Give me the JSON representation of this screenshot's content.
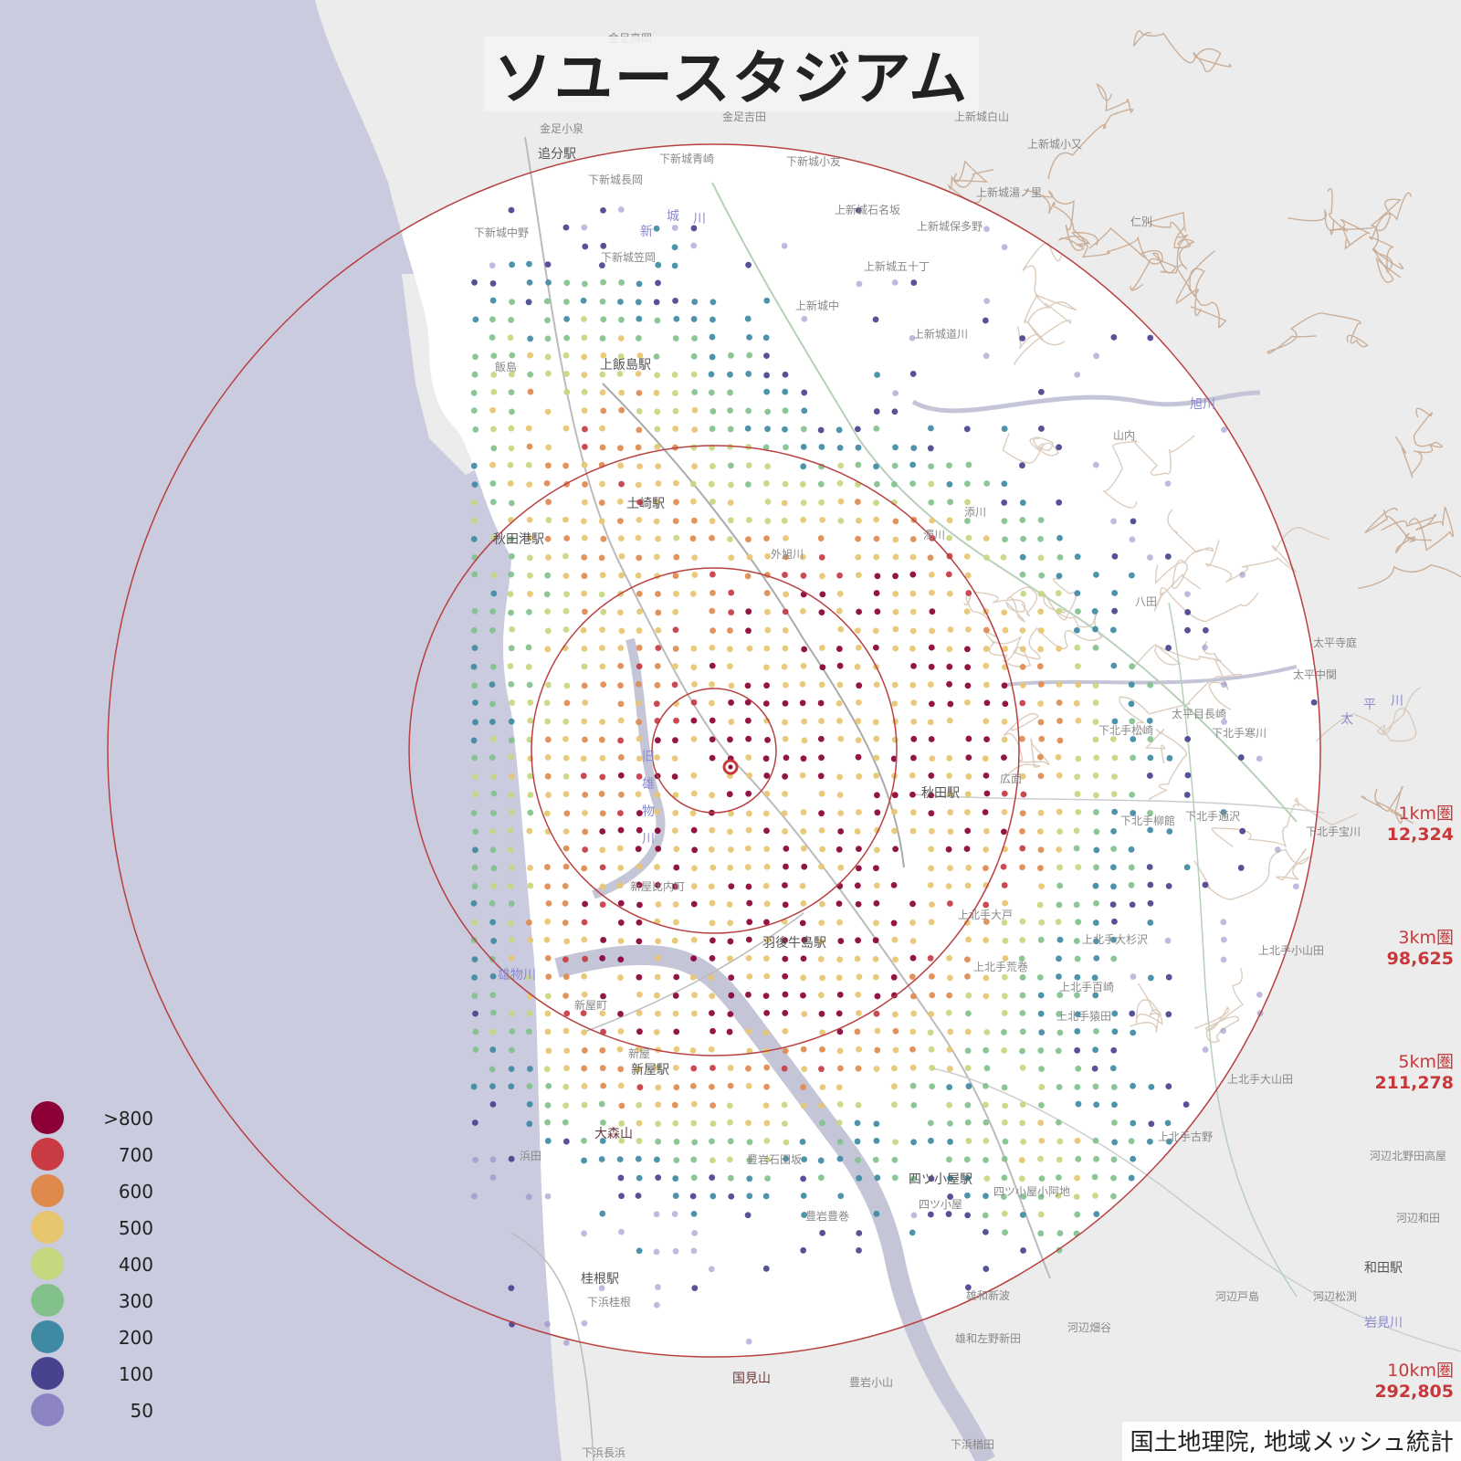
{
  "title": "ソユースタジアム",
  "credit": "国土地理院, 地域メッシュ統計",
  "rings": [
    {
      "label": "1km圏",
      "value": "12,324"
    },
    {
      "label": "3km圏",
      "value": "98,625"
    },
    {
      "label": "5km圏",
      "value": "211,278"
    },
    {
      "label": "10km圏",
      "value": "292,805"
    }
  ],
  "legend": [
    {
      "label": ">800",
      "color": "#8b0036"
    },
    {
      "label": "700",
      "color": "#c93a42"
    },
    {
      "label": "600",
      "color": "#df8a4d"
    },
    {
      "label": "500",
      "color": "#e7c670"
    },
    {
      "label": "400",
      "color": "#c5d77f"
    },
    {
      "label": "300",
      "color": "#82c18c"
    },
    {
      "label": "200",
      "color": "#3e8aa3"
    },
    {
      "label": "100",
      "color": "#47438f"
    },
    {
      "label": "50",
      "color": "#8c84c3"
    }
  ],
  "places": {
    "stations": [
      "追分駅",
      "上飯島駅",
      "土崎駅",
      "秋田港駅",
      "秋田駅",
      "羽後牛島駅",
      "新屋駅",
      "四ツ小屋駅",
      "桂根駅",
      "和田駅"
    ],
    "rivers": [
      "新",
      "城",
      "川",
      "旧",
      "雄",
      "物",
      "川",
      "雄物川",
      "旭川",
      "太",
      "平",
      "川",
      "岩見川"
    ],
    "mountains": [
      "大森山",
      "国見山"
    ],
    "areas": [
      "金足高岡",
      "金足吉田",
      "金足小泉",
      "下新城青崎",
      "下新城長岡",
      "下新城小友",
      "上新城石名坂",
      "上新城保多野",
      "上新城五十丁",
      "下新城中野",
      "下新城笠岡",
      "上新城中",
      "上新城道川",
      "飯島",
      "上新城白山",
      "上新城小又",
      "上新城湯ノ里",
      "仁別",
      "山内",
      "濁川",
      "添川",
      "外旭川",
      "八田",
      "太平寺庭",
      "太平中関",
      "太平目長崎",
      "下北手寒川",
      "下北手松崎",
      "広面",
      "下北手柳館",
      "下北手通沢",
      "下北手宝川",
      "上北手大戸",
      "上北手荒巻",
      "上北手大杉沢",
      "上北手小山田",
      "上北手百崎",
      "上北手猿田",
      "上北手大山田",
      "上北手古野",
      "河辺北野田高屋",
      "河辺和田",
      "河辺戸島",
      "河辺松渕",
      "河辺畑谷",
      "雄和新波",
      "雄和左野新田",
      "四ツ小屋",
      "四ツ小屋小阿地",
      "豊岩石田坂",
      "豊岩豊巻",
      "豊岩小山",
      "新屋町",
      "新屋比内町",
      "浜田",
      "下浜桂根",
      "下浜長浜",
      "下浜楢田",
      "新屋"
    ]
  }
}
